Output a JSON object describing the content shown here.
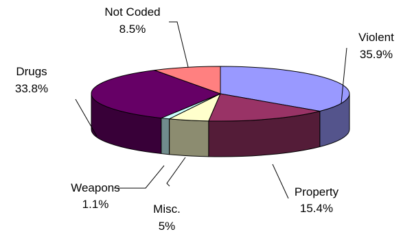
{
  "chart_data": {
    "type": "pie",
    "style": "3d",
    "slices": [
      {
        "label": "Violent",
        "value": 35.9,
        "value_label": "35.9%",
        "color": "#9999FF"
      },
      {
        "label": "Property",
        "value": 15.4,
        "value_label": "15.4%",
        "color": "#993366"
      },
      {
        "label": "Misc.",
        "value": 5,
        "value_label": "5%",
        "color": "#FFFFCC"
      },
      {
        "label": "Weapons",
        "value": 1.1,
        "value_label": "1.1%",
        "color": "#CCFFFF"
      },
      {
        "label": "Drugs",
        "value": 33.8,
        "value_label": "33.8%",
        "color": "#660066"
      },
      {
        "label": "Not Coded",
        "value": 8.5,
        "value_label": "8.5%",
        "color": "#FF8080"
      }
    ]
  }
}
